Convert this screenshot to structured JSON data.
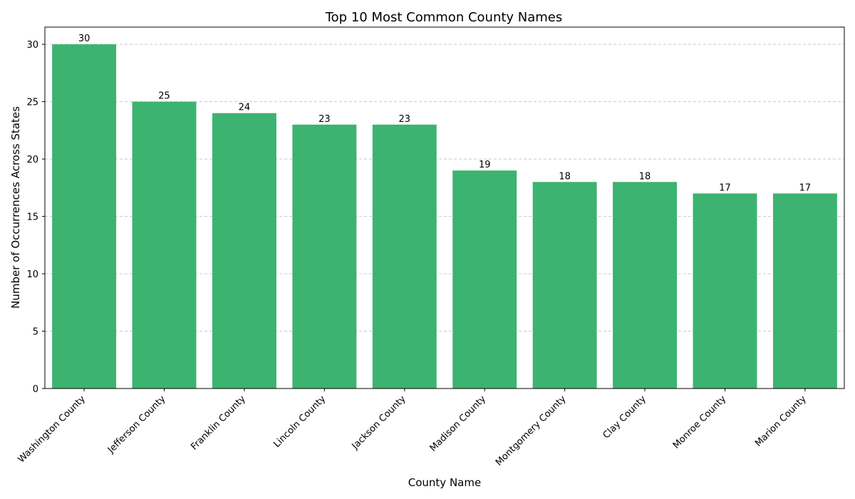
{
  "chart_data": {
    "type": "bar",
    "title": "Top 10 Most Common County Names",
    "xlabel": "County Name",
    "ylabel": "Number of Occurrences Across States",
    "categories": [
      "Washington County",
      "Jefferson County",
      "Franklin County",
      "Lincoln County",
      "Jackson County",
      "Madison County",
      "Montgomery County",
      "Clay County",
      "Monroe County",
      "Marion County"
    ],
    "values": [
      30,
      25,
      24,
      23,
      23,
      19,
      18,
      18,
      17,
      17
    ],
    "ylim": [
      0,
      31.5
    ],
    "yticks": [
      0,
      5,
      10,
      15,
      20,
      25,
      30
    ],
    "grid": "y-axis dashed",
    "legend": "none",
    "bar_color": "#3cb371",
    "grid_color": "#c8c8c8"
  }
}
